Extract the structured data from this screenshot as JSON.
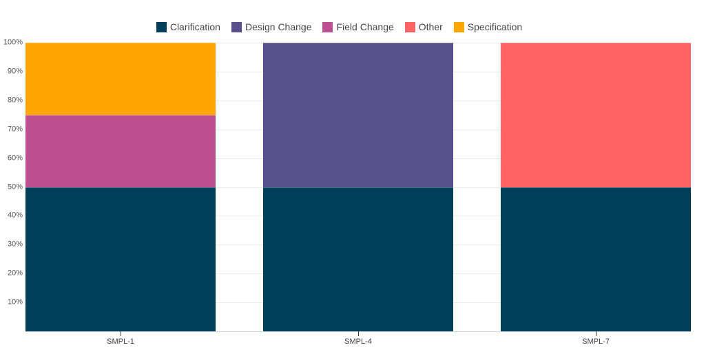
{
  "chart_data": {
    "type": "bar",
    "stacked": true,
    "title": "",
    "categories": [
      "SMPL-1",
      "SMPL-4",
      "SMPL-7"
    ],
    "series": [
      {
        "name": "Clarification",
        "color": "#003f5c",
        "values": [
          50,
          50,
          50
        ]
      },
      {
        "name": "Design Change",
        "color": "#58508d",
        "values": [
          0,
          50,
          0
        ]
      },
      {
        "name": "Field Change",
        "color": "#bc5090",
        "values": [
          25,
          0,
          0
        ]
      },
      {
        "name": "Other",
        "color": "#ff6361",
        "values": [
          0,
          0,
          50
        ]
      },
      {
        "name": "Specification",
        "color": "#ffa600",
        "values": [
          25,
          0,
          0
        ]
      }
    ],
    "y_ticks": [
      "10%",
      "20%",
      "30%",
      "40%",
      "50%",
      "60%",
      "70%",
      "80%",
      "90%",
      "100%"
    ],
    "ylim": [
      0,
      100
    ],
    "unit": "%",
    "grid": true,
    "legend_position": "top",
    "bar_width_pct": 28.57
  },
  "colors": {
    "background": "#ffffff",
    "gridline": "#e9e9e9",
    "axis_line": "#ccd2d8",
    "tick": "#3a3a3a",
    "y_label_text": "#585858",
    "x_label_text": "#3d3d3d",
    "legend_text": "#46464e"
  }
}
